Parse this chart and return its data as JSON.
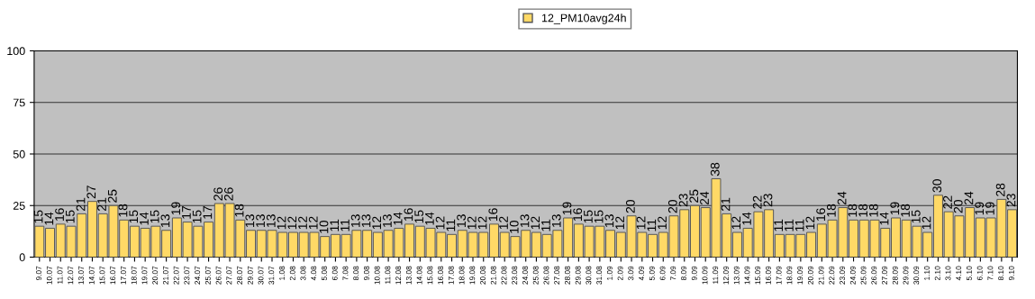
{
  "chart_data": {
    "type": "bar",
    "categories": [
      "9.07",
      "10.07",
      "11.07",
      "12.07",
      "13.07",
      "14.07",
      "15.07",
      "16.07",
      "17.07",
      "18.07",
      "19.07",
      "20.07",
      "21.07",
      "22.07",
      "23.07",
      "24.07",
      "25.07",
      "26.07",
      "27.07",
      "28.07",
      "29.07",
      "30.07",
      "31.07",
      "1.08",
      "2.08",
      "3.08",
      "4.08",
      "5.08",
      "6.08",
      "7.08",
      "8.08",
      "9.08",
      "10.08",
      "11.08",
      "12.08",
      "13.08",
      "14.08",
      "15.08",
      "16.08",
      "17.08",
      "18.08",
      "19.08",
      "20.08",
      "21.08",
      "22.08",
      "23.08",
      "24.08",
      "25.08",
      "26.08",
      "27.08",
      "28.08",
      "29.08",
      "30.08",
      "31.08",
      "1.09",
      "2.09",
      "3.09",
      "4.09",
      "5.09",
      "6.09",
      "7.09",
      "8.09",
      "9.09",
      "10.09",
      "11.09",
      "12.09",
      "13.09",
      "14.09",
      "15.09",
      "16.09",
      "17.09",
      "18.09",
      "19.09",
      "20.09",
      "21.09",
      "22.09",
      "23.09",
      "24.09",
      "25.09",
      "26.09",
      "27.09",
      "28.09",
      "29.09",
      "30.09",
      "1.10",
      "2.10",
      "3.10",
      "4.10",
      "5.10",
      "6.10",
      "7.10",
      "8.10",
      "9.10"
    ],
    "series": [
      {
        "name": "12_PM10avg24h",
        "color": "#ffd966",
        "values": [
          15,
          14,
          16,
          15,
          21,
          27,
          21,
          25,
          18,
          15,
          14,
          15,
          13,
          19,
          17,
          15,
          17,
          26,
          26,
          18,
          13,
          13,
          13,
          12,
          12,
          12,
          12,
          10,
          11,
          11,
          13,
          13,
          12,
          13,
          14,
          16,
          15,
          14,
          12,
          11,
          13,
          12,
          12,
          16,
          12,
          10,
          13,
          12,
          11,
          13,
          19,
          16,
          15,
          15,
          13,
          12,
          20,
          12,
          11,
          12,
          20,
          23,
          25,
          24,
          38,
          21,
          12,
          14,
          22,
          23,
          11,
          11,
          11,
          12,
          16,
          18,
          24,
          18,
          18,
          18,
          14,
          19,
          18,
          15,
          12,
          30,
          22,
          20,
          24,
          19,
          19,
          28,
          23
        ]
      }
    ],
    "ylim": [
      0,
      100
    ],
    "yticks": [
      0,
      25,
      50,
      75,
      100
    ],
    "grid": "y",
    "legend": "top",
    "data_labels": true
  }
}
